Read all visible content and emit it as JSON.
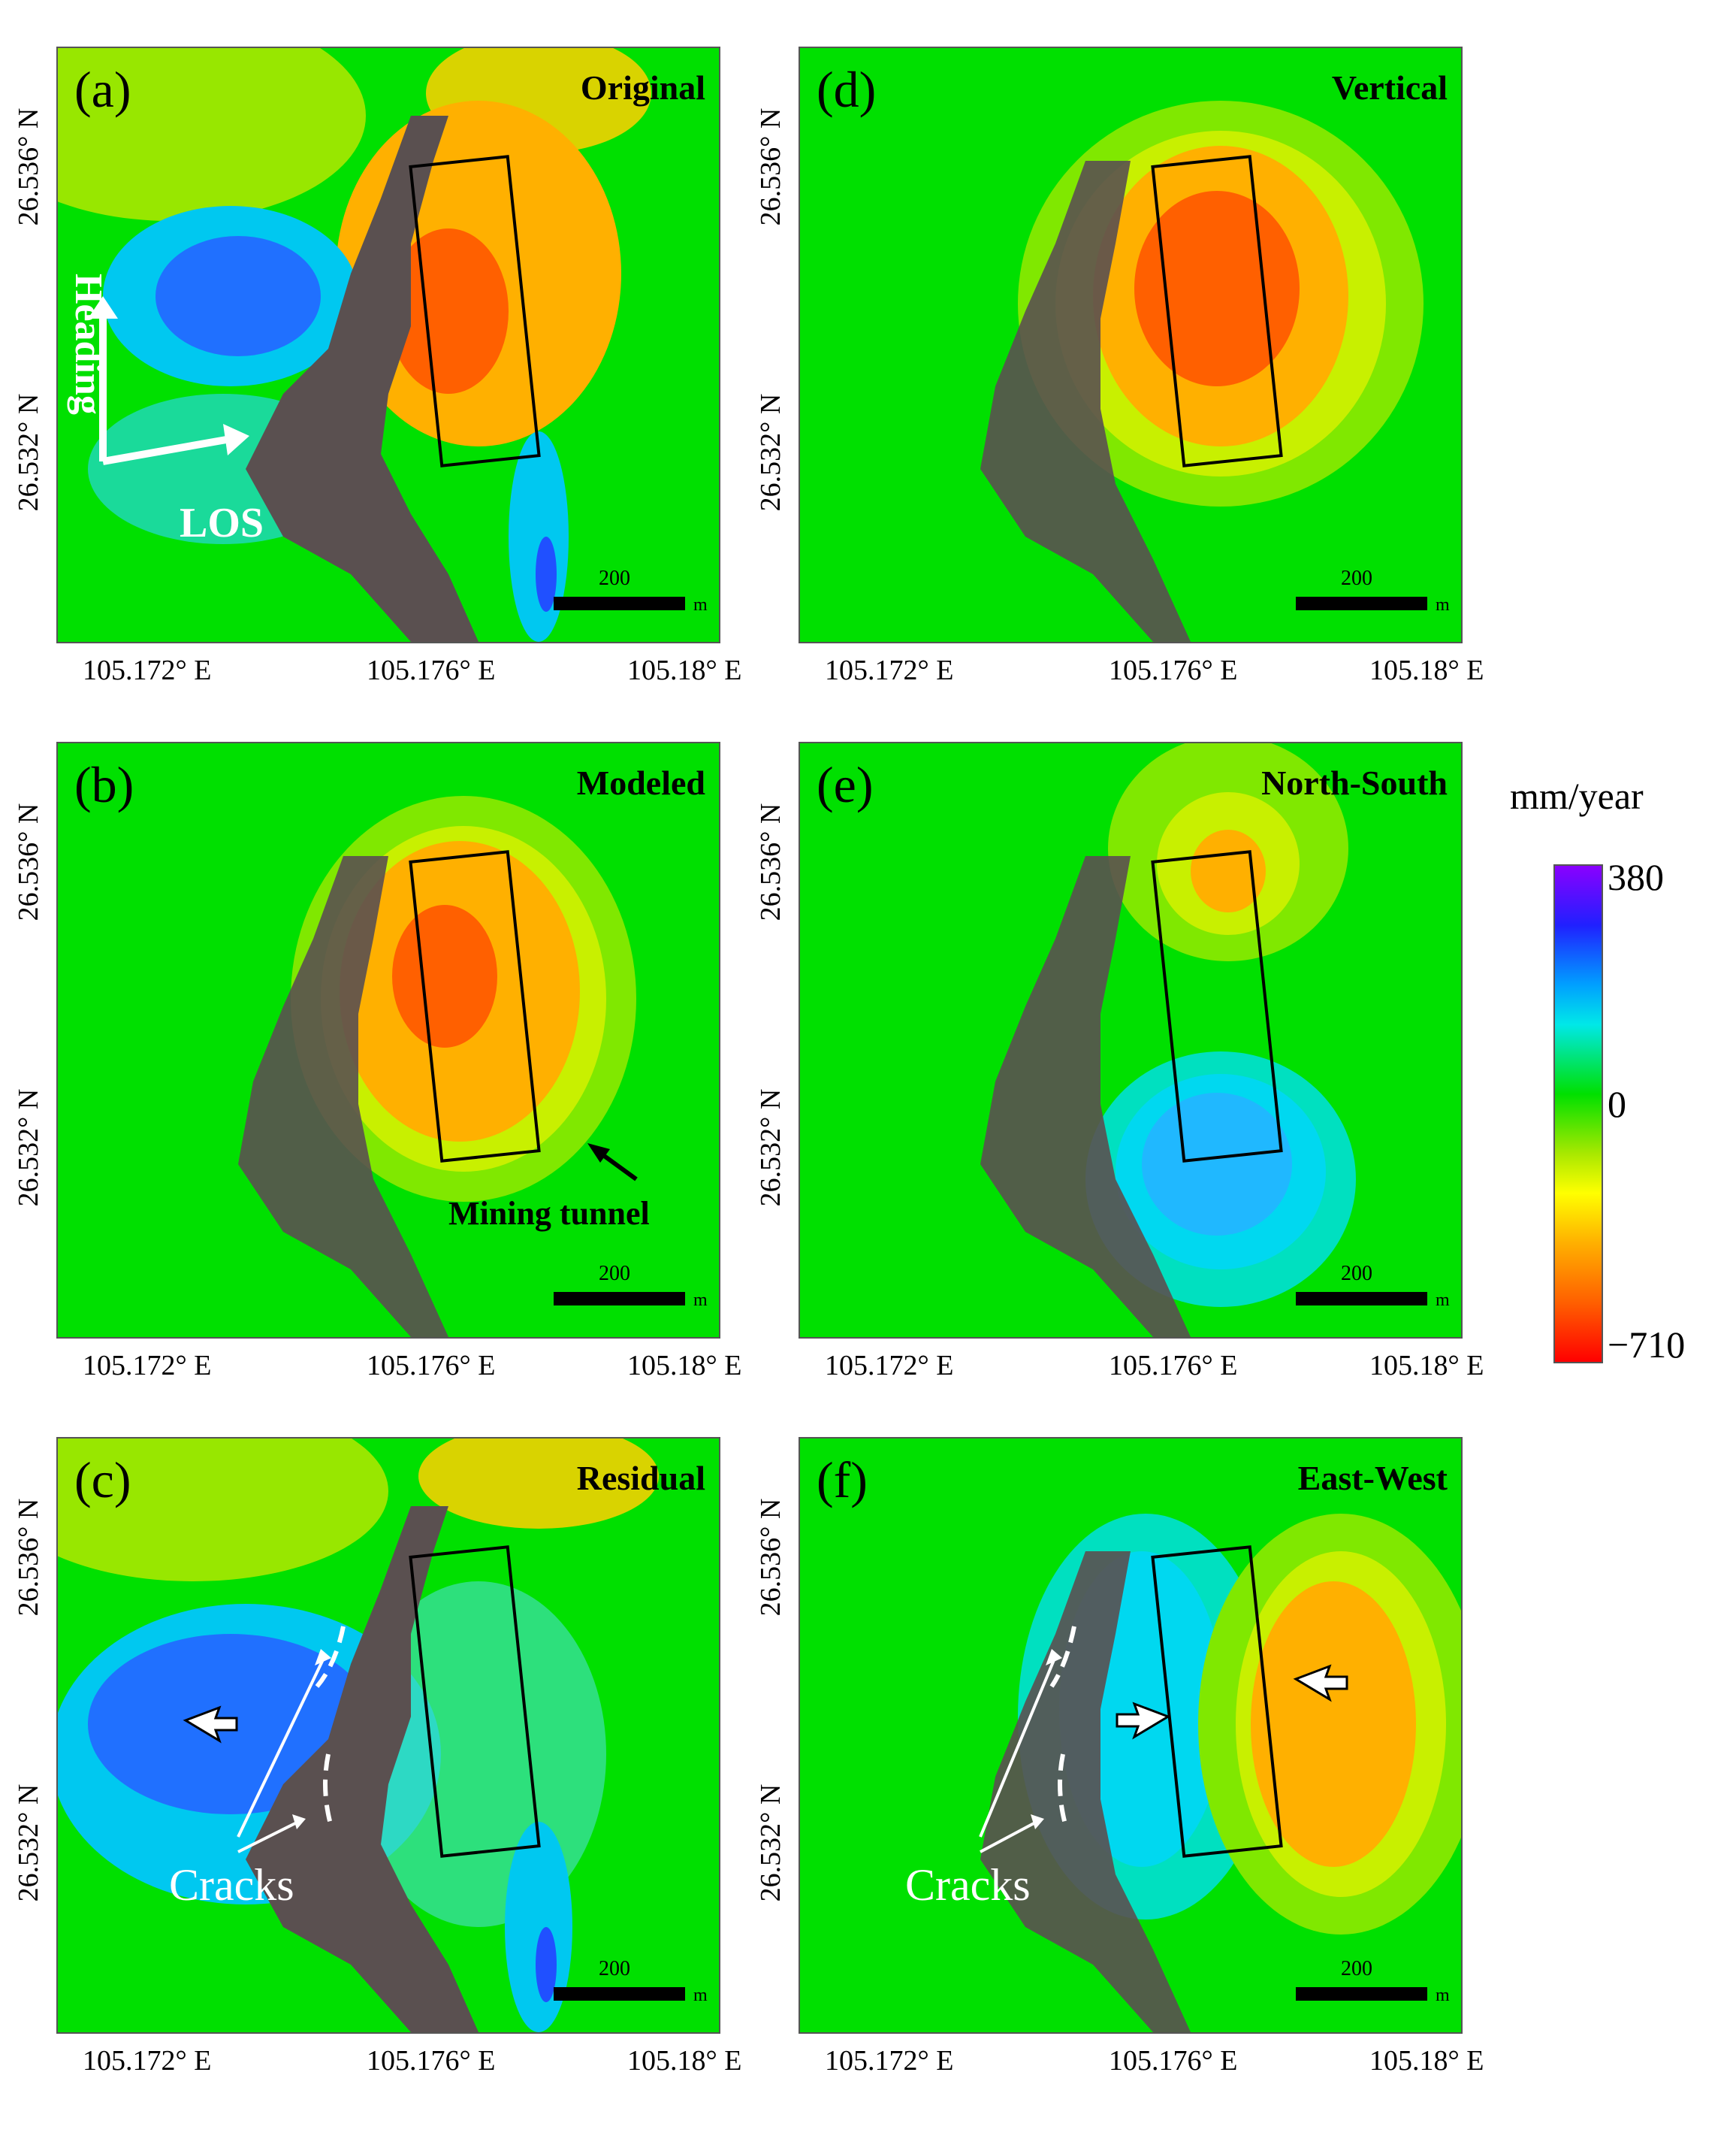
{
  "panels": [
    {
      "label": "(a)",
      "title": "Original"
    },
    {
      "label": "(b)",
      "title": "Modeled"
    },
    {
      "label": "(c)",
      "title": "Residual"
    },
    {
      "label": "(d)",
      "title": "Vertical"
    },
    {
      "label": "(e)",
      "title": "North-South"
    },
    {
      "label": "(f)",
      "title": "East-West"
    }
  ],
  "y_ticks": [
    "26.536° N",
    "26.532° N"
  ],
  "x_ticks": [
    "105.172° E",
    "105.176° E",
    "105.18° E"
  ],
  "scale_bar": {
    "value": "200",
    "unit": "m"
  },
  "annotations": {
    "heading": "Heading",
    "los": "LOS",
    "mining_tunnel": "Mining tunnel",
    "cracks_c": "Cracks",
    "cracks_f": "Cracks"
  },
  "colorbar": {
    "title": "mm/year",
    "max": "380",
    "mid": "0",
    "min": "−710"
  },
  "colors": {
    "background_green": "#00e000",
    "orange": "#ffb000",
    "red_orange": "#ff6000",
    "blue": "#2060ff",
    "cyan": "#00d8f0",
    "terrain": "#5a5050"
  }
}
